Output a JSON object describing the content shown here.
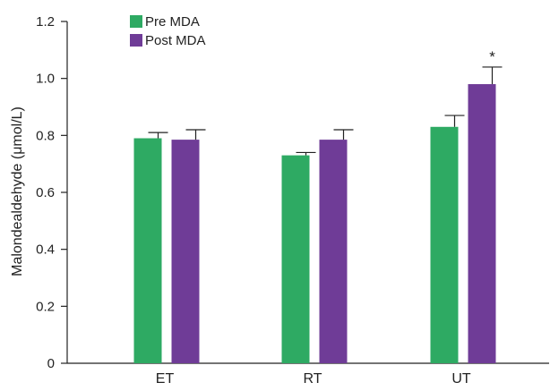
{
  "chart_data": {
    "type": "bar",
    "title": "",
    "xlabel": "",
    "ylabel": "Malondealdehyde (μmol/L)",
    "ylim": [
      0,
      1.2
    ],
    "yticks": [
      "0",
      "0.2",
      "0.4",
      "0.6",
      "0.8",
      "1.0",
      "1.2"
    ],
    "categories": [
      "ET",
      "RT",
      "UT"
    ],
    "series": [
      {
        "name": "Pre MDA",
        "color": "#2eaa63",
        "values": [
          0.79,
          0.73,
          0.83
        ],
        "errors": [
          0.02,
          0.01,
          0.04
        ]
      },
      {
        "name": "Post MDA",
        "color": "#6f3c97",
        "values": [
          0.785,
          0.785,
          0.98
        ],
        "errors": [
          0.035,
          0.035,
          0.06
        ]
      }
    ],
    "annotations": [
      {
        "text": "*",
        "category": "UT",
        "series": "Post MDA"
      }
    ],
    "grid": false,
    "legend": "top-left"
  }
}
